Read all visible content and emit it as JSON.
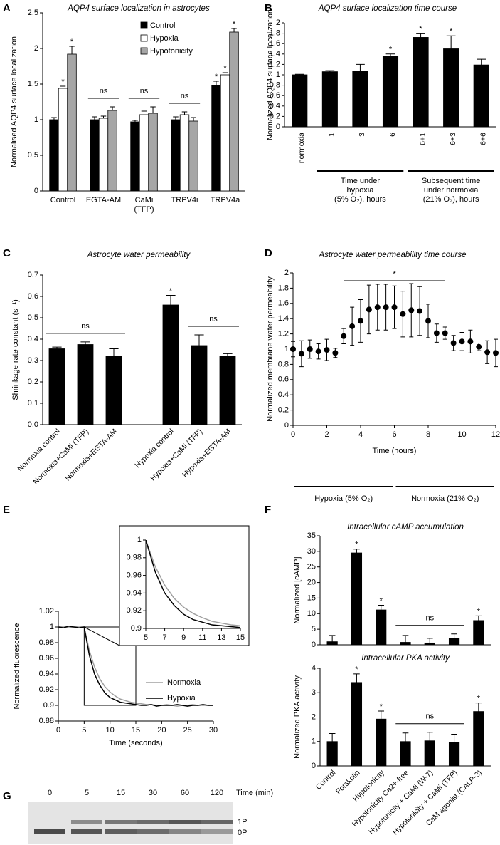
{
  "chart_data": [
    {
      "type": "bar",
      "panel": "A",
      "title": "AQP4 surface localization in astrocytes",
      "ylabel": "Normalised AQP4 surface localization",
      "categories": [
        "Control",
        "EGTA-AM",
        [
          "CaMi",
          "(TFP)"
        ],
        "TRPV4i",
        "TRPV4a"
      ],
      "series": [
        {
          "name": "Control",
          "color": "#000000",
          "values": [
            1.0,
            1.0,
            0.97,
            1.0,
            1.48
          ],
          "errors": [
            0.03,
            0.04,
            0.02,
            0.04,
            0.06
          ],
          "annotations": [
            null,
            null,
            null,
            null,
            "*"
          ]
        },
        {
          "name": "Hypoxia",
          "color": "#ffffff",
          "values": [
            1.44,
            1.02,
            1.07,
            1.07,
            1.63
          ],
          "errors": [
            0.03,
            0.03,
            0.05,
            0.04,
            0.03
          ],
          "annotations": [
            "*",
            null,
            null,
            null,
            "*"
          ]
        },
        {
          "name": "Hypotonicity",
          "color": "#a6a6a6",
          "values": [
            1.92,
            1.13,
            1.09,
            0.98,
            2.23
          ],
          "errors": [
            0.11,
            0.05,
            0.09,
            0.05,
            0.05
          ],
          "annotations": [
            "*",
            null,
            null,
            null,
            "*"
          ]
        }
      ],
      "group_annotations": [
        null,
        "ns",
        "ns",
        "ns",
        null
      ],
      "ylim": [
        0,
        2.5
      ],
      "yticks": [
        0,
        0.5,
        1,
        1.5,
        2,
        2.5
      ],
      "legend": "upper center"
    },
    {
      "type": "bar",
      "panel": "B",
      "title": "AQP4 surface localization time course",
      "ylabel": "Normalized AQP4 surface localization",
      "categories": [
        "normoxia",
        "1",
        "3",
        "6",
        "6+1",
        "6+3",
        "6+6"
      ],
      "color": "#000000",
      "values": [
        1.0,
        1.06,
        1.07,
        1.36,
        1.72,
        1.5,
        1.19
      ],
      "errors": [
        0.01,
        0.02,
        0.13,
        0.04,
        0.07,
        0.25,
        0.11
      ],
      "annotations": [
        null,
        null,
        null,
        "*",
        "*",
        "*",
        null
      ],
      "groups": [
        {
          "label": [
            "Time under",
            "hypoxia",
            "(5% O₂), hours"
          ],
          "from": "1",
          "to": "6"
        },
        {
          "label": [
            "Subsequent time",
            "under normoxia",
            "(21% O₂), hours"
          ],
          "from": "6+1",
          "to": "6+6"
        }
      ],
      "ylim": [
        0,
        2
      ],
      "yticks": [
        0,
        0.2,
        0.4,
        0.6,
        0.8,
        1,
        1.2,
        1.4,
        1.6,
        1.8,
        2
      ]
    },
    {
      "type": "bar",
      "panel": "C",
      "title": "Astrocyte water permeability",
      "ylabel": "Shrinkage rate constant (s⁻¹)",
      "categories": [
        "Normoxia control",
        "Normoxia+CaMi (TFP)",
        "Normoxia+EGTA-AM",
        null,
        "Hypoxia control",
        "Hypoxia+CaMi (TFP)",
        "Hypoxia+EGTA-AM"
      ],
      "color": "#000000",
      "values": [
        0.355,
        0.375,
        0.32,
        null,
        0.56,
        0.37,
        0.32
      ],
      "errors": [
        0.008,
        0.012,
        0.035,
        null,
        0.045,
        0.05,
        0.012
      ],
      "annotations": [
        null,
        null,
        null,
        null,
        "*",
        null,
        null
      ],
      "brackets": [
        {
          "label": "ns",
          "from": "Normoxia control",
          "to": "Normoxia+EGTA-AM"
        },
        {
          "label": "ns",
          "from": "Hypoxia+CaMi (TFP)",
          "to": "Hypoxia+EGTA-AM"
        }
      ],
      "ylim": [
        0,
        0.7
      ],
      "yticks": [
        {
          "value": 0,
          "label": "0.0"
        },
        0.1,
        0.2,
        0.3,
        0.4,
        0.5,
        0.6,
        0.7
      ]
    },
    {
      "type": "scatter",
      "panel": "D",
      "title": "Astrocyte water permeability time course",
      "ylabel": "Normalized membrane water permeability",
      "xlabel": "Time (hours)",
      "color": "#000000",
      "x": [
        0,
        0.5,
        1,
        1.5,
        2,
        2.5,
        3,
        3.5,
        4,
        4.5,
        5,
        5.5,
        6,
        6.5,
        7,
        7.5,
        8,
        8.5,
        9,
        9.5,
        10,
        10.5,
        11,
        11.5,
        12
      ],
      "values": [
        1.0,
        0.94,
        1.0,
        0.97,
        0.99,
        0.95,
        1.17,
        1.3,
        1.37,
        1.52,
        1.55,
        1.55,
        1.55,
        1.46,
        1.51,
        1.5,
        1.37,
        1.21,
        1.21,
        1.08,
        1.1,
        1.1,
        1.03,
        0.96,
        0.95
      ],
      "errors": [
        0.1,
        0.17,
        0.12,
        0.1,
        0.14,
        0.06,
        0.1,
        0.25,
        0.28,
        0.32,
        0.3,
        0.3,
        0.28,
        0.3,
        0.35,
        0.32,
        0.22,
        0.12,
        0.08,
        0.1,
        0.12,
        0.15,
        0.05,
        0.15,
        0.18
      ],
      "brackets": [
        {
          "label": "*",
          "from": 3,
          "to": 9
        }
      ],
      "phases": [
        {
          "label": "Hypoxia (5% O₂)",
          "from": 0,
          "to": 6
        },
        {
          "label": "Normoxia (21% O₂)",
          "from": 6,
          "to": 12
        }
      ],
      "xlim": [
        0,
        12
      ],
      "xticks": [
        0,
        2,
        4,
        6,
        8,
        10,
        12
      ],
      "ylim": [
        0,
        2
      ],
      "yticks": [
        0,
        0.2,
        0.4,
        0.6,
        0.8,
        1,
        1.2,
        1.4,
        1.6,
        1.8,
        2
      ]
    },
    {
      "type": "line",
      "panel": "E",
      "ylabel": "Normalized fluorescence",
      "xlabel": "Time (seconds)",
      "x": [
        0,
        1,
        2,
        3,
        4,
        5,
        6,
        7,
        8,
        9,
        10,
        11,
        12,
        13,
        14,
        15,
        16,
        17,
        18,
        19,
        20,
        21,
        22,
        23,
        24,
        25,
        26,
        27,
        28,
        29,
        30
      ],
      "series": [
        {
          "name": "Normoxia",
          "color": "#a0a0a0",
          "values": [
            1.0,
            1.001,
            0.999,
            1.0,
            1.001,
            1.0,
            0.97,
            0.949,
            0.934,
            0.924,
            0.917,
            0.912,
            0.908,
            0.906,
            0.904,
            0.903,
            0.902,
            0.901,
            0.901,
            0.9,
            0.9,
            0.901,
            0.9,
            0.899,
            0.9,
            0.9,
            0.901,
            0.9,
            0.9,
            0.9,
            0.9
          ]
        },
        {
          "name": "Hypoxia",
          "color": "#000000",
          "values": [
            1.0,
            0.999,
            1.001,
            1.0,
            0.999,
            1.0,
            0.964,
            0.94,
            0.926,
            0.916,
            0.91,
            0.907,
            0.904,
            0.903,
            0.902,
            0.901,
            0.9,
            0.9,
            0.901,
            0.899,
            0.9,
            0.9,
            0.9,
            0.901,
            0.9,
            0.899,
            0.9,
            0.9,
            0.901,
            0.9,
            0.9
          ]
        }
      ],
      "xlim": [
        0,
        30
      ],
      "xticks": [
        0,
        5,
        10,
        15,
        20,
        25,
        30
      ],
      "ylim": [
        0.88,
        1.02
      ],
      "yticks": [
        0.88,
        0.9,
        0.92,
        0.94,
        0.96,
        0.98,
        1,
        1.02
      ],
      "legend": "center right"
    },
    {
      "type": "line",
      "xlim": [
        5,
        15
      ],
      "xticks": [
        5,
        7,
        9,
        11,
        13,
        15
      ],
      "ylim": [
        0.9,
        1
      ],
      "yticks": [
        0.9,
        0.92,
        0.94,
        0.96,
        0.98,
        1
      ]
    },
    {
      "type": "bar",
      "panel": "F",
      "title": "Intracellular cAMP accumulation",
      "ylabel": "Normalized [cAMP]",
      "color": "#000000",
      "values": [
        1,
        29.5,
        11.2,
        0.8,
        0.6,
        2.0,
        7.8
      ],
      "errors": [
        2,
        1.2,
        1.5,
        2.2,
        1.5,
        1.5,
        1.5
      ],
      "annotations": [
        null,
        "*",
        "*",
        null,
        null,
        null,
        "*"
      ],
      "brackets": [
        {
          "label": "ns",
          "from": "Hypotonicity Ca2+-free",
          "to": "Hypotonicity + CaMi (TFP)"
        }
      ],
      "ylim": [
        0,
        35
      ],
      "yticks": [
        0,
        5,
        10,
        15,
        20,
        25,
        30,
        35
      ]
    },
    {
      "type": "bar",
      "title": "Intracellular PKA activity",
      "ylabel": "Normalized PKA activity",
      "color": "#000000",
      "categories": [
        "Control",
        "Forskolin",
        "Hypotonicity",
        "Hypotonicity Ca2+-free",
        "Hypotonicity + CaMi (W-7)",
        "Hypotonicity + CaMi (TFP)",
        "CaM agonist (CALP-3)"
      ],
      "values": [
        1.0,
        3.42,
        1.92,
        1.0,
        1.03,
        0.97,
        2.23
      ],
      "errors": [
        0.33,
        0.35,
        0.33,
        0.35,
        0.35,
        0.33,
        0.35
      ],
      "annotations": [
        null,
        "*",
        "*",
        null,
        null,
        null,
        "*"
      ],
      "brackets": [
        {
          "label": "ns",
          "from": "Hypotonicity Ca2+-free",
          "to": "Hypotonicity + CaMi (TFP)"
        }
      ],
      "ylim": [
        0,
        4
      ],
      "yticks": [
        0,
        1,
        2,
        3,
        4
      ]
    }
  ],
  "gel": {
    "panel": "G",
    "lanes": [
      "0",
      "5",
      "15",
      "30",
      "60",
      "120"
    ],
    "axis_label": "Time (min)",
    "bands": [
      "1P",
      "0P"
    ]
  }
}
